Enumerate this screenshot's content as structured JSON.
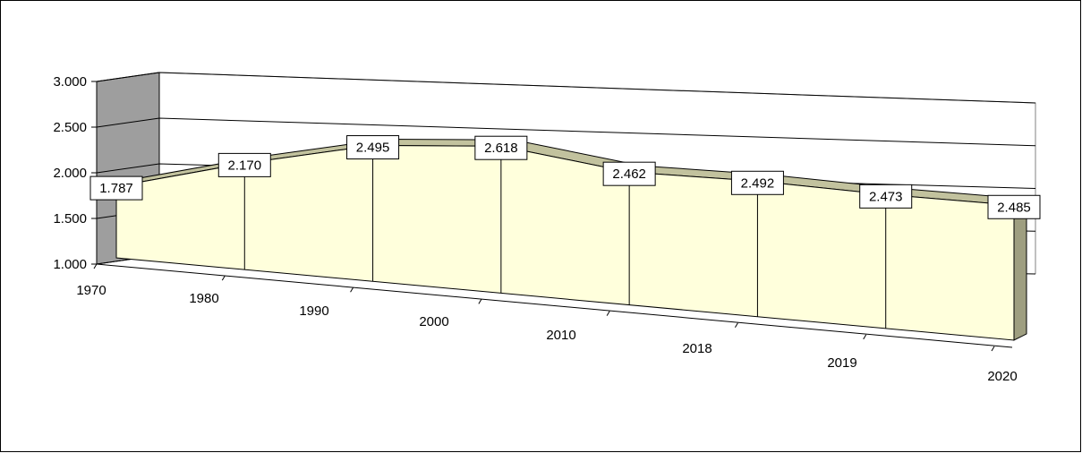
{
  "chart_data": {
    "type": "area",
    "style": "3d",
    "categories": [
      "1970",
      "1980",
      "1990",
      "2000",
      "2010",
      "2018",
      "2019",
      "2020"
    ],
    "values": [
      1787,
      2170,
      2495,
      2618,
      2462,
      2492,
      2473,
      2485
    ],
    "data_labels": [
      "1.787",
      "2.170",
      "2.495",
      "2.618",
      "2.462",
      "2.492",
      "2.473",
      "2.485"
    ],
    "y_ticks": [
      "1.000",
      "1.500",
      "2.000",
      "2.500",
      "3.000"
    ],
    "ylim": [
      1000,
      3000
    ],
    "grid": true,
    "legend": "none",
    "title": "",
    "xlabel": "",
    "ylabel": "",
    "colors": {
      "area_front": "#FFFFDC",
      "area_top": "#C2C29E",
      "area_side": "#9E9E80",
      "side_wall": "#9E9E9E",
      "outline": "#000000",
      "label_bg": "#FFFFFF"
    }
  }
}
